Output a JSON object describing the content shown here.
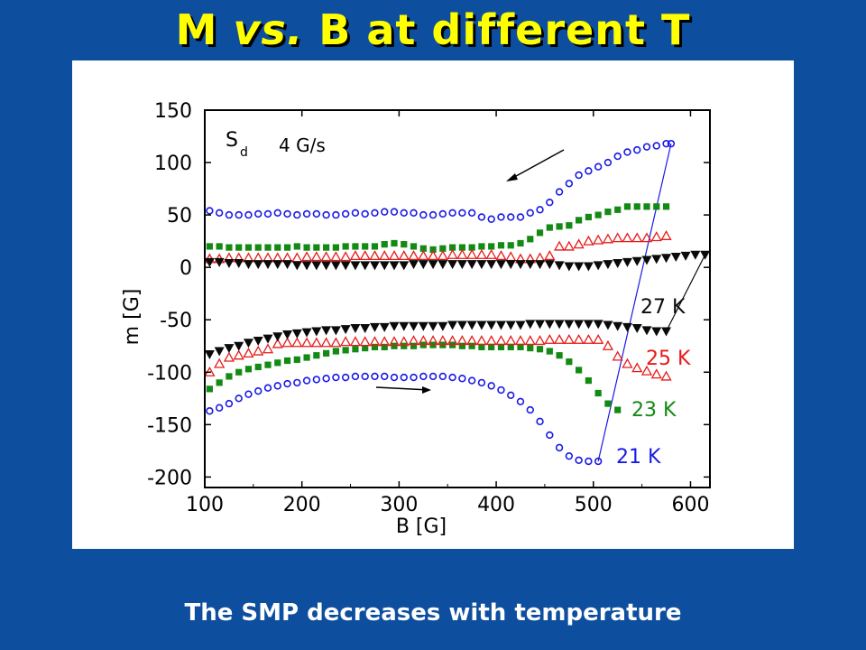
{
  "title": {
    "part1": "M ",
    "part2": "vs.",
    "part3": " B at different T"
  },
  "caption": "The SMP decreases with temperature",
  "chart_data": {
    "type": "scatter",
    "xlabel": "B [G]",
    "ylabel": "m [G]",
    "xlim": [
      100,
      620
    ],
    "ylim": [
      -210,
      150
    ],
    "xticks": [
      100,
      200,
      300,
      400,
      500,
      600
    ],
    "yticks": [
      150,
      100,
      50,
      0,
      -50,
      -100,
      -150,
      -200
    ],
    "annotation": {
      "sweep_symbol": "S",
      "sweep_sub": "d",
      "sweep_rate": "4 G/s"
    },
    "grid": false,
    "series": [
      {
        "name": "21 K",
        "color": "#1a1ae6",
        "marker": "circle",
        "upper_x": [
          105,
          115,
          125,
          135,
          145,
          155,
          165,
          175,
          185,
          195,
          205,
          215,
          225,
          235,
          245,
          255,
          265,
          275,
          285,
          295,
          305,
          315,
          325,
          335,
          345,
          355,
          365,
          375,
          385,
          395,
          405,
          415,
          425,
          435,
          445,
          455,
          465,
          475,
          485,
          495,
          505,
          515,
          525,
          535,
          545,
          555,
          565,
          575,
          580
        ],
        "upper_y": [
          54,
          52,
          50,
          50,
          50,
          51,
          51,
          52,
          51,
          50,
          51,
          51,
          50,
          50,
          51,
          52,
          51,
          52,
          53,
          53,
          52,
          52,
          50,
          50,
          51,
          52,
          52,
          52,
          48,
          46,
          48,
          48,
          48,
          52,
          55,
          62,
          72,
          80,
          88,
          92,
          96,
          100,
          106,
          110,
          112,
          115,
          116,
          118,
          118
        ],
        "lower_x": [
          105,
          115,
          125,
          135,
          145,
          155,
          165,
          175,
          185,
          195,
          205,
          215,
          225,
          235,
          245,
          255,
          265,
          275,
          285,
          295,
          305,
          315,
          325,
          335,
          345,
          355,
          365,
          375,
          385,
          395,
          405,
          415,
          425,
          435,
          445,
          455,
          465,
          475,
          485,
          495,
          505
        ],
        "lower_y": [
          -137,
          -134,
          -130,
          -125,
          -121,
          -118,
          -115,
          -113,
          -111,
          -110,
          -108,
          -107,
          -106,
          -105,
          -105,
          -104,
          -104,
          -104,
          -104,
          -105,
          -105,
          -105,
          -104,
          -104,
          -104,
          -105,
          -106,
          -108,
          -110,
          -113,
          -117,
          -122,
          -128,
          -136,
          -147,
          -160,
          -172,
          -180,
          -184,
          -185,
          -185
        ],
        "loop_x": [
          505,
          580
        ],
        "loop_y": [
          -185,
          118
        ]
      },
      {
        "name": "23 K",
        "color": "#138a13",
        "marker": "square",
        "upper_x": [
          105,
          115,
          125,
          135,
          145,
          155,
          165,
          175,
          185,
          195,
          205,
          215,
          225,
          235,
          245,
          255,
          265,
          275,
          285,
          295,
          305,
          315,
          325,
          335,
          345,
          355,
          365,
          375,
          385,
          395,
          405,
          415,
          425,
          435,
          445,
          455,
          465,
          475,
          485,
          495,
          505,
          515,
          525,
          535,
          545,
          555,
          565,
          575
        ],
        "upper_y": [
          20,
          20,
          19,
          19,
          19,
          19,
          19,
          19,
          19,
          20,
          19,
          19,
          19,
          19,
          20,
          20,
          20,
          20,
          22,
          23,
          22,
          20,
          18,
          17,
          18,
          19,
          19,
          19,
          20,
          20,
          21,
          21,
          23,
          27,
          33,
          38,
          39,
          40,
          45,
          48,
          50,
          53,
          55,
          58,
          58,
          58,
          58,
          58
        ],
        "lower_x": [
          105,
          115,
          125,
          135,
          145,
          155,
          165,
          175,
          185,
          195,
          205,
          215,
          225,
          235,
          245,
          255,
          265,
          275,
          285,
          295,
          305,
          315,
          325,
          335,
          345,
          355,
          365,
          375,
          385,
          395,
          405,
          415,
          425,
          435,
          445,
          455,
          465,
          475,
          485,
          495,
          505,
          515,
          525
        ],
        "lower_y": [
          -116,
          -110,
          -104,
          -100,
          -97,
          -95,
          -93,
          -91,
          -89,
          -88,
          -86,
          -84,
          -82,
          -80,
          -79,
          -78,
          -77,
          -76,
          -76,
          -75,
          -75,
          -75,
          -74,
          -74,
          -74,
          -74,
          -75,
          -75,
          -76,
          -76,
          -76,
          -76,
          -76,
          -77,
          -78,
          -80,
          -84,
          -90,
          -98,
          -108,
          -120,
          -130,
          -136
        ],
        "loop_x": [],
        "loop_y": []
      },
      {
        "name": "25 K",
        "color": "#e61a1a",
        "marker": "triangle-up",
        "upper_x": [
          105,
          115,
          125,
          135,
          145,
          155,
          165,
          175,
          185,
          195,
          205,
          215,
          225,
          235,
          245,
          255,
          265,
          275,
          285,
          295,
          305,
          315,
          325,
          335,
          345,
          355,
          365,
          375,
          385,
          395,
          405,
          415,
          425,
          435,
          445,
          455,
          465,
          475,
          485,
          495,
          505,
          515,
          525,
          535,
          545,
          555,
          565,
          575
        ],
        "upper_y": [
          8,
          8,
          9,
          9,
          9,
          9,
          9,
          9,
          9,
          9,
          10,
          10,
          10,
          10,
          10,
          11,
          11,
          11,
          11,
          11,
          11,
          11,
          11,
          11,
          11,
          12,
          12,
          12,
          12,
          12,
          11,
          10,
          8,
          8,
          9,
          11,
          20,
          20,
          22,
          25,
          26,
          27,
          28,
          28,
          28,
          28,
          29,
          30
        ],
        "lower_x": [
          105,
          115,
          125,
          135,
          145,
          155,
          165,
          175,
          185,
          195,
          205,
          215,
          225,
          235,
          245,
          255,
          265,
          275,
          285,
          295,
          305,
          315,
          325,
          335,
          345,
          355,
          365,
          375,
          385,
          395,
          405,
          415,
          425,
          435,
          445,
          455,
          465,
          475,
          485,
          495,
          505,
          515,
          525,
          535,
          545,
          555,
          565,
          575
        ],
        "lower_y": [
          -100,
          -92,
          -86,
          -84,
          -82,
          -80,
          -78,
          -73,
          -72,
          -72,
          -72,
          -72,
          -72,
          -72,
          -71,
          -71,
          -71,
          -71,
          -71,
          -71,
          -71,
          -70,
          -70,
          -70,
          -70,
          -70,
          -70,
          -70,
          -70,
          -70,
          -70,
          -70,
          -70,
          -70,
          -70,
          -69,
          -69,
          -69,
          -69,
          -69,
          -69,
          -75,
          -85,
          -92,
          -96,
          -99,
          -102,
          -104
        ],
        "loop_x": [],
        "loop_y": []
      },
      {
        "name": "27 K",
        "color": "#0a0a0a",
        "marker": "triangle-down",
        "upper_x": [
          105,
          115,
          125,
          135,
          145,
          155,
          165,
          175,
          185,
          195,
          205,
          215,
          225,
          235,
          245,
          255,
          265,
          275,
          285,
          295,
          305,
          315,
          325,
          335,
          345,
          355,
          365,
          375,
          385,
          395,
          405,
          415,
          425,
          435,
          445,
          455,
          465,
          475,
          485,
          495,
          505,
          515,
          525,
          535,
          545,
          555,
          565,
          575,
          585,
          595,
          605,
          615
        ],
        "upper_y": [
          5,
          5,
          4,
          4,
          3,
          3,
          3,
          3,
          3,
          2,
          2,
          2,
          2,
          2,
          2,
          2,
          2,
          2,
          2,
          2,
          2,
          3,
          3,
          3,
          3,
          3,
          3,
          3,
          3,
          3,
          3,
          3,
          3,
          3,
          3,
          3,
          2,
          1,
          1,
          1,
          2,
          3,
          4,
          5,
          6,
          7,
          8,
          9,
          10,
          11,
          12,
          12
        ],
        "lower_x": [
          105,
          115,
          125,
          135,
          145,
          155,
          165,
          175,
          185,
          195,
          205,
          215,
          225,
          235,
          245,
          255,
          265,
          275,
          285,
          295,
          305,
          315,
          325,
          335,
          345,
          355,
          365,
          375,
          385,
          395,
          405,
          415,
          425,
          435,
          445,
          455,
          465,
          475,
          485,
          495,
          505,
          515,
          525,
          535,
          545,
          555,
          565,
          575
        ],
        "lower_y": [
          -83,
          -80,
          -77,
          -75,
          -72,
          -70,
          -68,
          -66,
          -64,
          -63,
          -62,
          -61,
          -60,
          -60,
          -59,
          -58,
          -58,
          -57,
          -57,
          -56,
          -56,
          -56,
          -56,
          -56,
          -56,
          -55,
          -55,
          -55,
          -55,
          -55,
          -55,
          -55,
          -55,
          -54,
          -54,
          -54,
          -54,
          -54,
          -54,
          -54,
          -54,
          -55,
          -56,
          -57,
          -58,
          -60,
          -61,
          -61
        ],
        "loop_x": [
          575,
          615
        ],
        "loop_y": [
          -61,
          12
        ]
      }
    ]
  }
}
